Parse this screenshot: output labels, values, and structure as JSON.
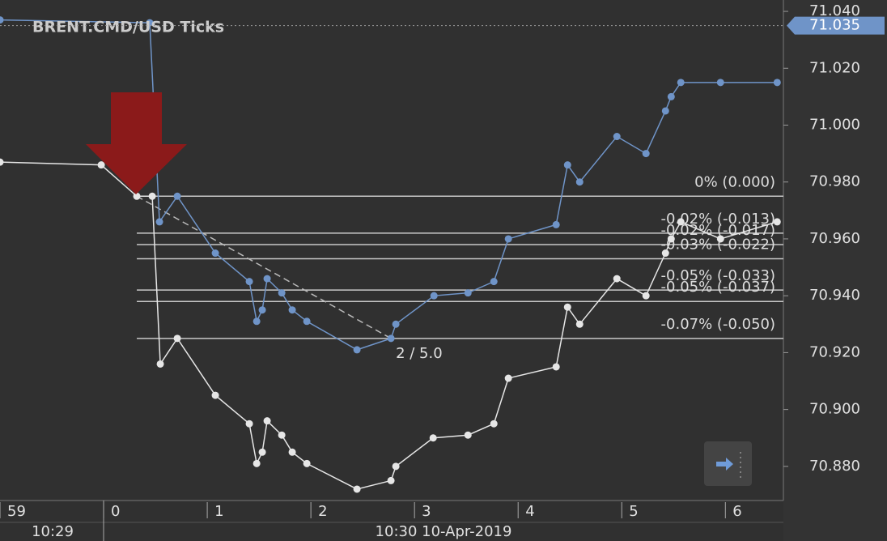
{
  "chart_data": {
    "type": "line",
    "title": "BRENT.CMD/USD  Ticks",
    "xlim": [
      -1,
      6.56
    ],
    "xticks": [
      {
        "value": -1,
        "label": "59"
      },
      0,
      1,
      2,
      3,
      4,
      5,
      6
    ],
    "time_labels": [
      "10:29",
      "10:30 10-Apr-2019"
    ],
    "ylim": [
      70.868,
      71.044
    ],
    "yticks": [
      {
        "value": 71.04,
        "label": "71.040"
      },
      {
        "value": 71.02,
        "label": "71.020"
      },
      {
        "value": 71.0,
        "label": "71.000"
      },
      {
        "value": 70.98,
        "label": "70.980"
      },
      {
        "value": 70.96,
        "label": "70.960"
      },
      {
        "value": 70.94,
        "label": "70.940"
      },
      {
        "value": 70.92,
        "label": "70.920"
      },
      {
        "value": 70.9,
        "label": "70.900"
      },
      {
        "value": 70.88,
        "label": "70.880"
      }
    ],
    "current_price": 71.035,
    "series": [
      {
        "color": "#6f94c8",
        "x": [
          -1,
          0.445,
          0.539,
          0.711,
          1.078,
          1.406,
          1.477,
          1.531,
          1.578,
          1.719,
          1.82,
          1.961,
          2.445,
          2.773,
          2.82,
          3.188,
          3.516,
          3.766,
          3.906,
          4.367,
          4.477,
          4.594,
          4.953,
          5.234,
          5.422,
          5.477,
          5.57,
          5.953,
          6.5
        ],
        "values": [
          71.037,
          71.036,
          70.966,
          70.975,
          70.955,
          70.945,
          70.931,
          70.935,
          70.946,
          70.941,
          70.935,
          70.931,
          70.921,
          70.925,
          70.93,
          70.94,
          70.941,
          70.945,
          70.96,
          70.965,
          70.986,
          70.98,
          70.996,
          70.99,
          71.005,
          71.01,
          71.015,
          71.015,
          71.015
        ]
      },
      {
        "color": "#e6e6e6",
        "x": [
          -1,
          -0.023,
          0.32,
          0.469,
          0.547,
          0.711,
          1.078,
          1.406,
          1.477,
          1.531,
          1.578,
          1.719,
          1.82,
          1.961,
          2.445,
          2.773,
          2.82,
          3.18,
          3.516,
          3.766,
          3.906,
          4.367,
          4.477,
          4.594,
          4.953,
          5.234,
          5.422,
          5.477,
          5.57,
          5.953,
          6.5
        ],
        "values": [
          70.987,
          70.986,
          70.975,
          70.975,
          70.916,
          70.925,
          70.905,
          70.895,
          70.881,
          70.885,
          70.896,
          70.891,
          70.885,
          70.881,
          70.872,
          70.875,
          70.88,
          70.89,
          70.891,
          70.895,
          70.911,
          70.915,
          70.936,
          70.93,
          70.946,
          70.94,
          70.955,
          70.96,
          70.966,
          70.96,
          70.966
        ]
      }
    ],
    "fib_start_x": 0.32,
    "fib_levels": [
      {
        "value": 70.975,
        "label": "0% (0.000)"
      },
      {
        "value": 70.962,
        "label": "-0.02% (-0.013)"
      },
      {
        "value": 70.958,
        "label": "-0.02% (-0.017)"
      },
      {
        "value": 70.953,
        "label": "-0.03% (-0.022)"
      },
      {
        "value": 70.942,
        "label": "-0.05% (-0.033)"
      },
      {
        "value": 70.938,
        "label": "-0.05% (-0.037)"
      },
      {
        "value": 70.925,
        "label": "-0.07% (-0.050)"
      }
    ],
    "trend_line": {
      "x": [
        0.32,
        2.773
      ],
      "values": [
        70.975,
        70.925
      ],
      "label": "2 / 5.0"
    }
  }
}
